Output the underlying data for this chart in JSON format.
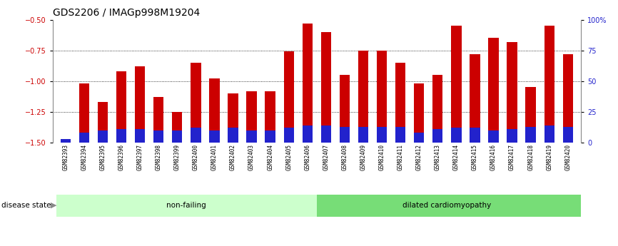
{
  "title": "GDS2206 / IMAGp998M19204",
  "categories": [
    "GSM82393",
    "GSM82394",
    "GSM82395",
    "GSM82396",
    "GSM82397",
    "GSM82398",
    "GSM82399",
    "GSM82400",
    "GSM82401",
    "GSM82402",
    "GSM82403",
    "GSM82404",
    "GSM82405",
    "GSM82406",
    "GSM82407",
    "GSM82408",
    "GSM82409",
    "GSM82410",
    "GSM82411",
    "GSM82412",
    "GSM82413",
    "GSM82414",
    "GSM82415",
    "GSM82416",
    "GSM82417",
    "GSM82418",
    "GSM82419",
    "GSM82420"
  ],
  "log2_ratio": [
    -1.47,
    -1.02,
    -1.17,
    -0.92,
    -0.88,
    -1.13,
    -1.25,
    -0.85,
    -0.98,
    -1.1,
    -1.08,
    -1.08,
    -0.76,
    -0.53,
    -0.6,
    -0.95,
    -0.75,
    -0.75,
    -0.85,
    -1.02,
    -0.95,
    -0.55,
    -0.78,
    -0.65,
    -0.68,
    -1.05,
    -0.55,
    -0.78
  ],
  "percentile_rank": [
    3,
    8,
    10,
    11,
    11,
    10,
    10,
    12,
    10,
    12,
    10,
    10,
    12,
    14,
    14,
    13,
    13,
    13,
    13,
    8,
    11,
    12,
    12,
    10,
    11,
    13,
    14,
    13
  ],
  "non_failing_count": 14,
  "ylim_left": [
    -1.5,
    -0.5
  ],
  "ylim_right": [
    0,
    100
  ],
  "bar_color_red": "#cc0000",
  "bar_color_blue": "#2222cc",
  "nonfailing_color": "#ccffcc",
  "dilated_color": "#77dd77",
  "label_color_left": "#cc0000",
  "label_color_right": "#2222cc",
  "title_fontsize": 10,
  "tick_fontsize": 7,
  "annot_fontsize": 8
}
